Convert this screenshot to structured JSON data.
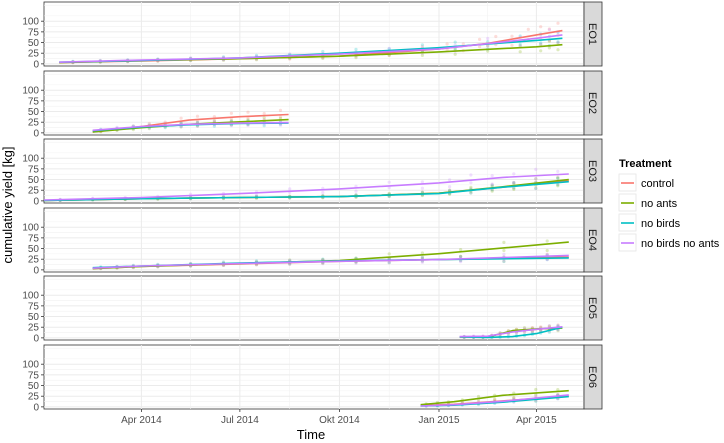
{
  "chart_data": {
    "type": "line",
    "xlabel": "Time",
    "ylabel": "cumulative yield [kg]",
    "x_range": [
      "2014-01-01",
      "2015-05-15"
    ],
    "x_ticks": [
      {
        "date": "2014-04-01",
        "label": "Apr 2014"
      },
      {
        "date": "2014-07-01",
        "label": "Jul 2014"
      },
      {
        "date": "2014-10-01",
        "label": "Okt 2014"
      },
      {
        "date": "2015-01-01",
        "label": "Jan 2015"
      },
      {
        "date": "2015-04-01",
        "label": "Apr 2015"
      }
    ],
    "ylim": [
      -5,
      145
    ],
    "y_ticks": [
      0,
      25,
      50,
      75,
      100
    ],
    "grid": true,
    "legend": {
      "title": "Treatment",
      "position": "right",
      "entries": [
        "control",
        "no ants",
        "no birds",
        "no birds no ants"
      ]
    },
    "colors": {
      "control": "#F8766D",
      "no ants": "#7CAE00",
      "no birds": "#00BFC4",
      "no birds no ants": "#C77CFF"
    },
    "panels": [
      {
        "label": "EO1",
        "series": [
          {
            "name": "control",
            "points": [
              [
                "2014-01-15",
                3
              ],
              [
                "2014-04-01",
                7
              ],
              [
                "2014-07-01",
                12
              ],
              [
                "2014-10-01",
                18
              ],
              [
                "2015-01-01",
                35
              ],
              [
                "2015-02-15",
                48
              ],
              [
                "2015-04-01",
                68
              ],
              [
                "2015-04-25",
                78
              ]
            ]
          },
          {
            "name": "no ants",
            "points": [
              [
                "2014-01-15",
                3
              ],
              [
                "2014-04-01",
                8
              ],
              [
                "2014-07-01",
                12
              ],
              [
                "2014-10-01",
                18
              ],
              [
                "2015-01-01",
                28
              ],
              [
                "2015-04-01",
                40
              ],
              [
                "2015-04-25",
                45
              ]
            ]
          },
          {
            "name": "no birds",
            "points": [
              [
                "2014-01-15",
                4
              ],
              [
                "2014-04-01",
                8
              ],
              [
                "2014-07-01",
                14
              ],
              [
                "2014-10-01",
                25
              ],
              [
                "2015-01-01",
                38
              ],
              [
                "2015-04-01",
                55
              ],
              [
                "2015-04-25",
                60
              ]
            ]
          },
          {
            "name": "no birds no ants",
            "points": [
              [
                "2014-01-15",
                4
              ],
              [
                "2014-04-01",
                9
              ],
              [
                "2014-07-01",
                14
              ],
              [
                "2014-10-01",
                23
              ],
              [
                "2015-01-01",
                35
              ],
              [
                "2015-04-01",
                60
              ],
              [
                "2015-04-25",
                68
              ]
            ]
          }
        ]
      },
      {
        "label": "EO2",
        "series": [
          {
            "name": "control",
            "points": [
              [
                "2014-02-15",
                2
              ],
              [
                "2014-04-01",
                15
              ],
              [
                "2014-05-15",
                30
              ],
              [
                "2014-07-01",
                38
              ],
              [
                "2014-08-15",
                43
              ]
            ]
          },
          {
            "name": "no ants",
            "points": [
              [
                "2014-02-15",
                2
              ],
              [
                "2014-04-01",
                12
              ],
              [
                "2014-05-15",
                20
              ],
              [
                "2014-07-01",
                26
              ],
              [
                "2014-08-15",
                31
              ]
            ]
          },
          {
            "name": "no birds",
            "points": [
              [
                "2014-02-15",
                5
              ],
              [
                "2014-04-01",
                14
              ],
              [
                "2014-05-15",
                19
              ],
              [
                "2014-07-01",
                22
              ],
              [
                "2014-08-15",
                23
              ]
            ]
          },
          {
            "name": "no birds no ants",
            "points": [
              [
                "2014-02-15",
                6
              ],
              [
                "2014-04-01",
                15
              ],
              [
                "2014-05-15",
                20
              ],
              [
                "2014-07-01",
                23
              ],
              [
                "2014-08-15",
                24
              ]
            ]
          }
        ]
      },
      {
        "label": "EO3",
        "series": [
          {
            "name": "control",
            "points": [
              [
                "2014-01-01",
                1
              ],
              [
                "2014-04-01",
                5
              ],
              [
                "2014-07-01",
                8
              ],
              [
                "2014-10-01",
                10
              ],
              [
                "2015-01-01",
                18
              ],
              [
                "2015-03-01",
                32
              ],
              [
                "2015-05-01",
                47
              ]
            ]
          },
          {
            "name": "no ants",
            "points": [
              [
                "2014-01-01",
                1
              ],
              [
                "2014-04-01",
                5
              ],
              [
                "2014-07-01",
                8
              ],
              [
                "2014-10-01",
                10
              ],
              [
                "2015-01-01",
                18
              ],
              [
                "2015-03-01",
                33
              ],
              [
                "2015-05-01",
                50
              ]
            ]
          },
          {
            "name": "no birds",
            "points": [
              [
                "2014-01-01",
                1
              ],
              [
                "2014-04-01",
                5
              ],
              [
                "2014-07-01",
                8
              ],
              [
                "2014-10-01",
                10
              ],
              [
                "2015-01-01",
                17
              ],
              [
                "2015-03-01",
                32
              ],
              [
                "2015-05-01",
                45
              ]
            ]
          },
          {
            "name": "no birds no ants",
            "points": [
              [
                "2014-01-01",
                2
              ],
              [
                "2014-04-01",
                8
              ],
              [
                "2014-07-01",
                17
              ],
              [
                "2014-10-01",
                28
              ],
              [
                "2015-01-01",
                42
              ],
              [
                "2015-03-01",
                55
              ],
              [
                "2015-05-01",
                63
              ]
            ]
          }
        ]
      },
      {
        "label": "EO4",
        "series": [
          {
            "name": "control",
            "points": [
              [
                "2014-02-15",
                3
              ],
              [
                "2014-04-01",
                8
              ],
              [
                "2014-07-01",
                14
              ],
              [
                "2014-10-01",
                20
              ],
              [
                "2015-01-01",
                24
              ],
              [
                "2015-05-01",
                30
              ]
            ]
          },
          {
            "name": "no ants",
            "points": [
              [
                "2014-02-15",
                3
              ],
              [
                "2014-04-01",
                8
              ],
              [
                "2014-07-01",
                15
              ],
              [
                "2014-10-01",
                22
              ],
              [
                "2015-01-01",
                38
              ],
              [
                "2015-05-01",
                65
              ]
            ]
          },
          {
            "name": "no birds",
            "points": [
              [
                "2014-02-15",
                5
              ],
              [
                "2014-04-01",
                9
              ],
              [
                "2014-07-01",
                16
              ],
              [
                "2014-10-01",
                21
              ],
              [
                "2015-01-01",
                24
              ],
              [
                "2015-05-01",
                28
              ]
            ]
          },
          {
            "name": "no birds no ants",
            "points": [
              [
                "2014-02-15",
                4
              ],
              [
                "2014-04-01",
                9
              ],
              [
                "2014-07-01",
                15
              ],
              [
                "2014-10-01",
                20
              ],
              [
                "2015-01-01",
                24
              ],
              [
                "2015-05-01",
                34
              ]
            ]
          }
        ]
      },
      {
        "label": "EO5",
        "series": [
          {
            "name": "control",
            "points": [
              [
                "2015-01-20",
                2
              ],
              [
                "2015-02-15",
                3
              ],
              [
                "2015-03-10",
                15
              ],
              [
                "2015-04-01",
                20
              ],
              [
                "2015-04-25",
                25
              ]
            ]
          },
          {
            "name": "no ants",
            "points": [
              [
                "2015-01-20",
                2
              ],
              [
                "2015-02-15",
                2
              ],
              [
                "2015-03-10",
                17
              ],
              [
                "2015-04-01",
                21
              ],
              [
                "2015-04-25",
                23
              ]
            ]
          },
          {
            "name": "no birds",
            "points": [
              [
                "2015-01-20",
                2
              ],
              [
                "2015-02-15",
                1
              ],
              [
                "2015-03-10",
                3
              ],
              [
                "2015-04-01",
                10
              ],
              [
                "2015-04-25",
                25
              ]
            ]
          },
          {
            "name": "no birds no ants",
            "points": [
              [
                "2015-01-20",
                3
              ],
              [
                "2015-02-15",
                4
              ],
              [
                "2015-03-10",
                14
              ],
              [
                "2015-04-01",
                20
              ],
              [
                "2015-04-25",
                26
              ]
            ]
          }
        ]
      },
      {
        "label": "EO6",
        "series": [
          {
            "name": "control",
            "points": [
              [
                "2014-12-15",
                3
              ],
              [
                "2015-01-15",
                6
              ],
              [
                "2015-03-01",
                14
              ],
              [
                "2015-05-01",
                25
              ]
            ]
          },
          {
            "name": "no ants",
            "points": [
              [
                "2014-12-15",
                5
              ],
              [
                "2015-01-15",
                12
              ],
              [
                "2015-03-01",
                27
              ],
              [
                "2015-05-01",
                38
              ]
            ]
          },
          {
            "name": "no birds",
            "points": [
              [
                "2014-12-15",
                2
              ],
              [
                "2015-01-15",
                4
              ],
              [
                "2015-03-01",
                11
              ],
              [
                "2015-05-01",
                24
              ]
            ]
          },
          {
            "name": "no birds no ants",
            "points": [
              [
                "2014-12-15",
                2
              ],
              [
                "2015-01-15",
                5
              ],
              [
                "2015-03-01",
                13
              ],
              [
                "2015-05-01",
                28
              ]
            ]
          }
        ]
      }
    ]
  }
}
